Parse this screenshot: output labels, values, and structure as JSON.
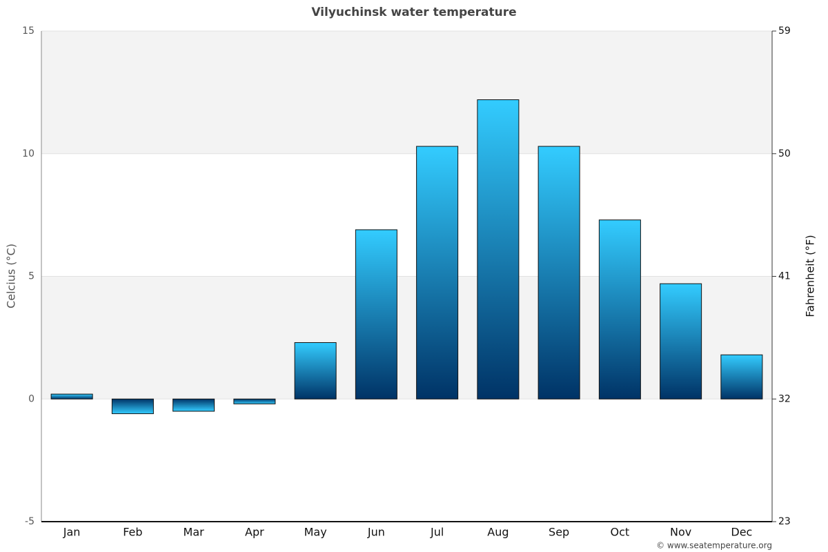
{
  "chart_data": {
    "type": "bar",
    "title": "Vilyuchinsk water temperature",
    "y_label": "Celcius (°C)",
    "y2_label": "Fahrenheit (°F)",
    "categories": [
      "Jan",
      "Feb",
      "Mar",
      "Apr",
      "May",
      "Jun",
      "Jul",
      "Aug",
      "Sep",
      "Oct",
      "Nov",
      "Dec"
    ],
    "values": [
      0.2,
      -0.6,
      -0.5,
      -0.2,
      2.3,
      6.9,
      10.3,
      12.2,
      10.3,
      7.3,
      4.7,
      1.8
    ],
    "gradient": [
      "#33ccff",
      "#003366"
    ],
    "ylim": [
      -5,
      15
    ],
    "yticks": [
      -5,
      0,
      5,
      10,
      15
    ],
    "y2lim": [
      23,
      59
    ],
    "y2ticks": [
      23,
      32,
      41,
      50,
      59
    ],
    "grid": true,
    "credit": "© www.seatemperature.org"
  }
}
